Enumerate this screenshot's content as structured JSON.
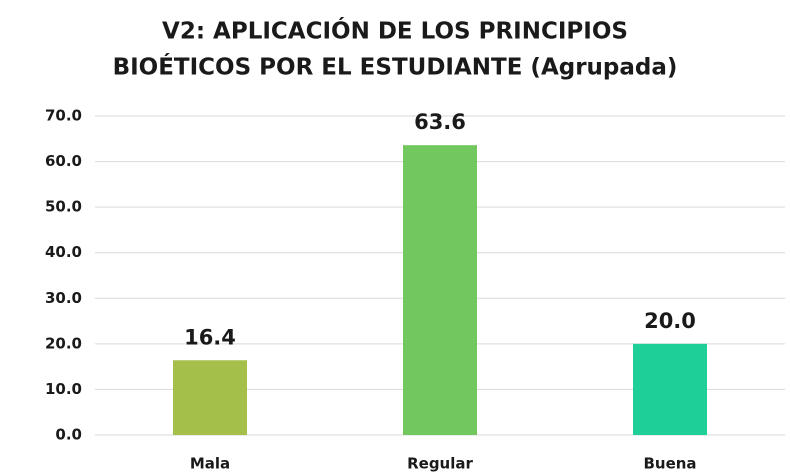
{
  "chart_data": {
    "type": "bar",
    "title": [
      "V2: APLICACIÓN DE LOS PRINCIPIOS",
      "BIOÉTICOS POR EL ESTUDIANTE (Agrupada)"
    ],
    "categories": [
      "Mala",
      "Regular",
      "Buena"
    ],
    "values": [
      16.4,
      63.6,
      20.0
    ],
    "value_labels": [
      "16.4",
      "63.6",
      "20.0"
    ],
    "colors": [
      "#a5c04a",
      "#72c85e",
      "#1ecf97"
    ],
    "ylim": [
      0,
      70
    ],
    "yticks": [
      {
        "value": 0,
        "label": "0.0"
      },
      {
        "value": 10,
        "label": "10.0"
      },
      {
        "value": 20,
        "label": "20.0"
      },
      {
        "value": 30,
        "label": "30.0"
      },
      {
        "value": 40,
        "label": "40.0"
      },
      {
        "value": 50,
        "label": "50.0"
      },
      {
        "value": 60,
        "label": "60.0"
      },
      {
        "value": 70,
        "label": "70.0"
      }
    ],
    "grid": true
  }
}
